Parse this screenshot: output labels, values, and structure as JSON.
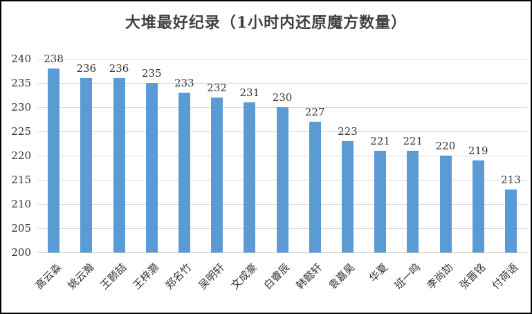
{
  "chart_data": {
    "type": "bar",
    "title": "大堆最好纪录（1小时内还原魔方数量）",
    "categories": [
      "高云淼",
      "姚云瀚",
      "王颢喆",
      "王梓灏",
      "郑名竹",
      "吴明轩",
      "文成豪",
      "白睿辰",
      "韩懿轩",
      "袁嘉昊",
      "华夏",
      "班一鸣",
      "李尚劼",
      "张晋铭",
      "付荷语"
    ],
    "values": [
      238,
      236,
      236,
      235,
      233,
      232,
      231,
      230,
      227,
      223,
      221,
      221,
      220,
      219,
      213
    ],
    "xlabel": "",
    "ylabel": "",
    "ylim": [
      200,
      240
    ],
    "yticks": [
      200,
      205,
      210,
      215,
      220,
      225,
      230,
      235,
      240
    ],
    "grid": true,
    "legend": "none",
    "data_labels": true,
    "colors": {
      "bar": "#5b9bd5",
      "gridline": "#d9d9d9",
      "axis_line": "#bfbfbf",
      "title_text": "#404040",
      "tick_text": "#333333",
      "data_label_text": "#333333",
      "border": "#000000",
      "background": "#ffffff"
    }
  }
}
